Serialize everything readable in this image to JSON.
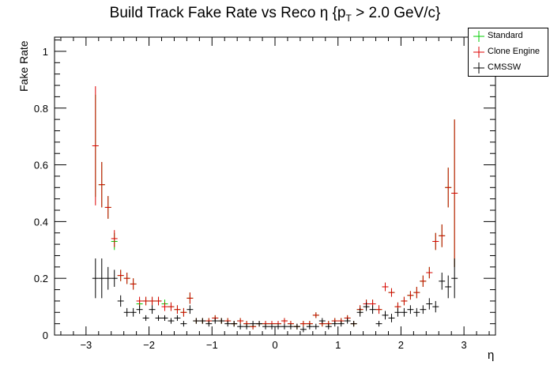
{
  "title_main": "Build Track Fake Rate vs Reco η {p",
  "title_sub": "T",
  "title_end": " > 2.0 GeV/c}",
  "chart_data": {
    "type": "scatter",
    "title": "Build Track Fake Rate vs Reco η {p_T > 2.0 GeV/c}",
    "xlabel": "η",
    "ylabel": "Fake Rate",
    "xlim": [
      -3.5,
      3.5
    ],
    "ylim": [
      0,
      1.05
    ],
    "x_ticks": [
      -3,
      -2,
      -1,
      0,
      1,
      2,
      3
    ],
    "y_ticks": [
      0,
      0.2,
      0.4,
      0.6,
      0.8,
      1
    ],
    "grid": false,
    "legend_position": "top-right",
    "bin_width": 0.1,
    "x": [
      -2.85,
      -2.75,
      -2.65,
      -2.55,
      -2.45,
      -2.35,
      -2.25,
      -2.15,
      -2.05,
      -1.95,
      -1.85,
      -1.75,
      -1.65,
      -1.55,
      -1.45,
      -1.35,
      -1.25,
      -1.15,
      -1.05,
      -0.95,
      -0.85,
      -0.75,
      -0.65,
      -0.55,
      -0.45,
      -0.35,
      -0.25,
      -0.15,
      -0.05,
      0.05,
      0.15,
      0.25,
      0.35,
      0.45,
      0.55,
      0.65,
      0.75,
      0.85,
      0.95,
      1.05,
      1.15,
      1.25,
      1.35,
      1.45,
      1.55,
      1.65,
      1.75,
      1.85,
      1.95,
      2.05,
      2.15,
      2.25,
      2.35,
      2.45,
      2.55,
      2.65,
      2.75,
      2.85
    ],
    "series": [
      {
        "name": "Standard",
        "color": "#00cc00",
        "values": [
          0.667,
          0.53,
          0.45,
          0.33,
          0.21,
          0.2,
          0.18,
          0.11,
          0.12,
          0.12,
          0.12,
          0.11,
          0.1,
          0.09,
          0.08,
          0.13,
          0.05,
          0.05,
          0.05,
          0.06,
          0.05,
          0.05,
          0.04,
          0.05,
          0.04,
          0.03,
          0.04,
          0.04,
          0.04,
          0.04,
          0.05,
          0.04,
          0.03,
          0.04,
          0.04,
          0.07,
          0.04,
          0.04,
          0.05,
          0.05,
          0.06,
          0.04,
          0.09,
          0.11,
          0.11,
          0.09,
          0.17,
          0.15,
          0.1,
          0.12,
          0.14,
          0.15,
          0.19,
          0.22,
          0.33,
          0.35,
          0.52,
          0.5
        ],
        "errors": [
          0.18,
          0.08,
          0.04,
          0.03,
          0.02,
          0.02,
          0.02,
          0.015,
          0.015,
          0.015,
          0.015,
          0.015,
          0.015,
          0.015,
          0.015,
          0.02,
          0.01,
          0.01,
          0.01,
          0.01,
          0.01,
          0.01,
          0.01,
          0.01,
          0.01,
          0.01,
          0.01,
          0.01,
          0.01,
          0.01,
          0.01,
          0.01,
          0.01,
          0.01,
          0.01,
          0.01,
          0.01,
          0.01,
          0.01,
          0.01,
          0.01,
          0.01,
          0.015,
          0.015,
          0.015,
          0.015,
          0.015,
          0.015,
          0.015,
          0.015,
          0.015,
          0.02,
          0.02,
          0.02,
          0.03,
          0.04,
          0.07,
          0.26
        ]
      },
      {
        "name": "Clone Engine",
        "color": "#dd0000",
        "values": [
          0.667,
          0.53,
          0.45,
          0.34,
          0.21,
          0.2,
          0.18,
          0.12,
          0.12,
          0.12,
          0.12,
          0.1,
          0.1,
          0.09,
          0.08,
          0.13,
          0.05,
          0.05,
          0.05,
          0.06,
          0.05,
          0.05,
          0.04,
          0.05,
          0.04,
          0.03,
          0.04,
          0.04,
          0.04,
          0.04,
          0.05,
          0.04,
          0.03,
          0.04,
          0.04,
          0.07,
          0.04,
          0.04,
          0.05,
          0.05,
          0.06,
          0.04,
          0.09,
          0.11,
          0.11,
          0.09,
          0.17,
          0.15,
          0.1,
          0.12,
          0.14,
          0.15,
          0.19,
          0.22,
          0.33,
          0.35,
          0.52,
          0.5
        ],
        "errors": [
          0.21,
          0.08,
          0.04,
          0.03,
          0.02,
          0.02,
          0.02,
          0.015,
          0.015,
          0.015,
          0.015,
          0.015,
          0.015,
          0.015,
          0.015,
          0.02,
          0.01,
          0.01,
          0.01,
          0.01,
          0.01,
          0.01,
          0.01,
          0.01,
          0.01,
          0.01,
          0.01,
          0.01,
          0.01,
          0.01,
          0.01,
          0.01,
          0.01,
          0.01,
          0.01,
          0.01,
          0.01,
          0.01,
          0.01,
          0.01,
          0.01,
          0.01,
          0.015,
          0.015,
          0.015,
          0.015,
          0.015,
          0.015,
          0.015,
          0.015,
          0.015,
          0.02,
          0.02,
          0.02,
          0.03,
          0.04,
          0.07,
          0.26
        ]
      },
      {
        "name": "CMSSW",
        "color": "#000000",
        "values": [
          0.2,
          0.2,
          0.2,
          0.2,
          0.12,
          0.08,
          0.08,
          0.09,
          0.06,
          0.09,
          0.06,
          0.06,
          0.05,
          0.06,
          0.04,
          0.09,
          0.05,
          0.05,
          0.04,
          0.05,
          0.05,
          0.04,
          0.04,
          0.03,
          0.03,
          0.04,
          0.04,
          0.03,
          0.03,
          0.03,
          0.03,
          0.03,
          0.03,
          0.02,
          0.03,
          0.03,
          0.05,
          0.03,
          0.04,
          0.04,
          0.05,
          0.04,
          0.08,
          0.1,
          0.09,
          0.04,
          0.07,
          0.06,
          0.08,
          0.08,
          0.09,
          0.08,
          0.09,
          0.11,
          0.1,
          0.19,
          0.17,
          0.2
        ],
        "errors": [
          0.07,
          0.07,
          0.04,
          0.03,
          0.02,
          0.015,
          0.015,
          0.015,
          0.01,
          0.015,
          0.01,
          0.01,
          0.01,
          0.01,
          0.01,
          0.015,
          0.01,
          0.01,
          0.01,
          0.01,
          0.01,
          0.01,
          0.01,
          0.01,
          0.01,
          0.01,
          0.01,
          0.01,
          0.01,
          0.01,
          0.01,
          0.01,
          0.01,
          0.01,
          0.01,
          0.01,
          0.01,
          0.01,
          0.01,
          0.01,
          0.01,
          0.01,
          0.015,
          0.015,
          0.015,
          0.01,
          0.015,
          0.015,
          0.015,
          0.015,
          0.015,
          0.015,
          0.015,
          0.02,
          0.02,
          0.03,
          0.04,
          0.07
        ]
      }
    ]
  }
}
